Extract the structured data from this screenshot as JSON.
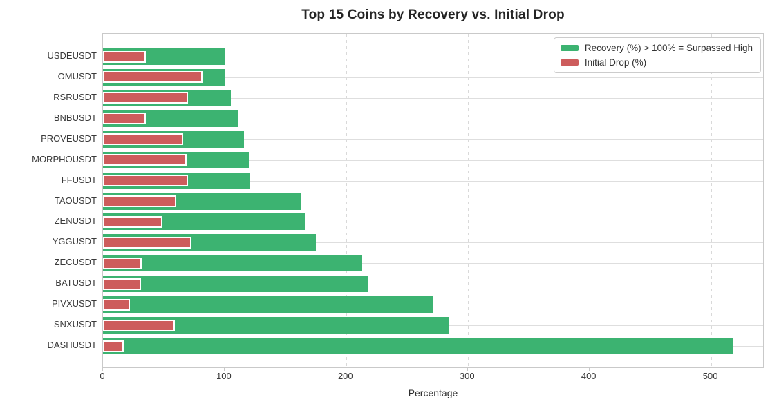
{
  "figure": {
    "title": "Top 15 Coins by Recovery vs. Initial Drop",
    "xlabel": "Percentage"
  },
  "colors": {
    "recovery_green": "#3cb371",
    "drop_red": "#cd5c5c",
    "grid": "#d9d9d9",
    "spine": "#c9c9c9",
    "text": "#2e2e2e"
  },
  "legend": {
    "items": [
      {
        "label": "Recovery (%) > 100% = Surpassed High",
        "color": "#3cb371"
      },
      {
        "label": "Initial Drop (%)",
        "color": "#cd5c5c"
      }
    ]
  },
  "chart_data": {
    "type": "bar",
    "orientation": "horizontal",
    "title": "Top 15 Coins by Recovery vs. Initial Drop",
    "xlabel": "Percentage",
    "ylabel": "",
    "categories": [
      "USDEUSDT",
      "OMUSDT",
      "RSRUSDT",
      "BNBUSDT",
      "PROVEUSDT",
      "MORPHOUSDT",
      "FFUSDT",
      "TAOUSDT",
      "ZENUSDT",
      "YGGUSDT",
      "ZECUSDT",
      "BATUSDT",
      "PIVXUSDT",
      "SNXUSDT",
      "DASHUSDT"
    ],
    "series": [
      {
        "name": "Recovery (%) > 100% = Surpassed High",
        "color": "#3cb371",
        "values": [
          100,
          100,
          105,
          111,
          116,
          120,
          121,
          163,
          166,
          175,
          213,
          218,
          271,
          285,
          518
        ]
      },
      {
        "name": "Initial Drop (%)",
        "color": "#cd5c5c",
        "values": [
          35,
          82,
          70,
          35,
          66,
          69,
          70,
          60,
          49,
          73,
          32,
          31,
          22,
          59,
          17
        ]
      }
    ],
    "xlim": [
      0,
      544
    ],
    "x_ticks": [
      0,
      100,
      200,
      300,
      400,
      500
    ],
    "grid": true,
    "legend_position": "upper right"
  }
}
